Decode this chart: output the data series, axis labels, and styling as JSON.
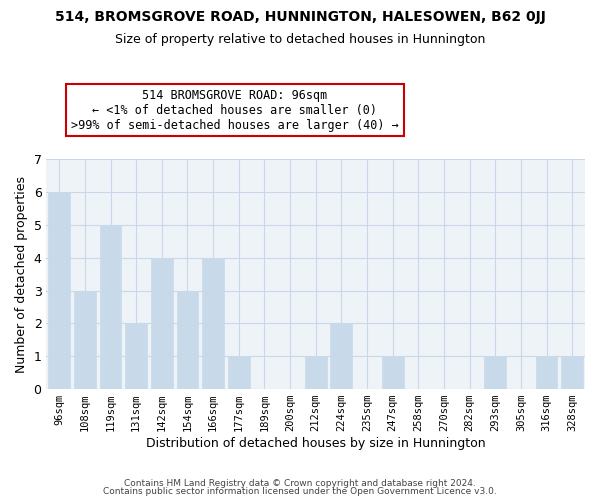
{
  "title": "514, BROMSGROVE ROAD, HUNNINGTON, HALESOWEN, B62 0JJ",
  "subtitle": "Size of property relative to detached houses in Hunnington",
  "xlabel": "Distribution of detached houses by size in Hunnington",
  "ylabel": "Number of detached properties",
  "footer_lines": [
    "Contains HM Land Registry data © Crown copyright and database right 2024.",
    "Contains public sector information licensed under the Open Government Licence v3.0."
  ],
  "categories": [
    "96sqm",
    "108sqm",
    "119sqm",
    "131sqm",
    "142sqm",
    "154sqm",
    "166sqm",
    "177sqm",
    "189sqm",
    "200sqm",
    "212sqm",
    "224sqm",
    "235sqm",
    "247sqm",
    "258sqm",
    "270sqm",
    "282sqm",
    "293sqm",
    "305sqm",
    "316sqm",
    "328sqm"
  ],
  "values": [
    6,
    3,
    5,
    2,
    4,
    3,
    4,
    1,
    0,
    0,
    1,
    2,
    0,
    1,
    0,
    0,
    0,
    1,
    0,
    1,
    1
  ],
  "bar_color": "#c8daea",
  "annotation_box_text": "514 BROMSGROVE ROAD: 96sqm\n← <1% of detached houses are smaller (0)\n>99% of semi-detached houses are larger (40) →",
  "annotation_box_edge_color": "#cc0000",
  "ylim": [
    0,
    7
  ],
  "yticks": [
    0,
    1,
    2,
    3,
    4,
    5,
    6,
    7
  ],
  "grid_color": "#c8d8e8",
  "background_color": "#ffffff",
  "plot_bg_color": "#eef3f8"
}
